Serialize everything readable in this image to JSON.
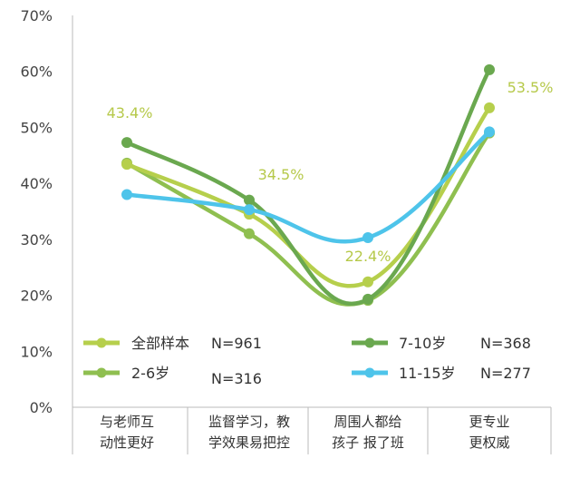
{
  "chart_data": {
    "type": "line",
    "smooth": true,
    "categories": [
      "与老师互\n动性更好",
      "监督学习，教\n学效果易把控",
      "周围人都给\n孩子 报了班",
      "更专业\n更权威"
    ],
    "ylim": [
      0,
      70
    ],
    "yticks": [
      "0%",
      "10%",
      "20%",
      "30%",
      "40%",
      "50%",
      "60%",
      "70%"
    ],
    "grid": false,
    "legend_position": "bottom-inside",
    "series": [
      {
        "name": "全部样本",
        "n_label": "N=961",
        "color": "#b6cf4c",
        "values": [
          43.4,
          34.5,
          22.4,
          53.5
        ],
        "data_labels": [
          "43.4%",
          "34.5%",
          "22.4%",
          "53.5%"
        ]
      },
      {
        "name": "2-6岁",
        "n_label": "N=316",
        "color": "#8fbf50",
        "values": [
          43.6,
          31.0,
          19.1,
          49.0
        ]
      },
      {
        "name": "7-10岁",
        "n_label": "N=368",
        "color": "#6aa84f",
        "values": [
          47.3,
          37.0,
          19.3,
          60.3
        ]
      },
      {
        "name": "11-15岁",
        "n_label": "N=277",
        "color": "#4ec4ea",
        "values": [
          38.0,
          35.3,
          30.3,
          49.2
        ]
      }
    ]
  }
}
